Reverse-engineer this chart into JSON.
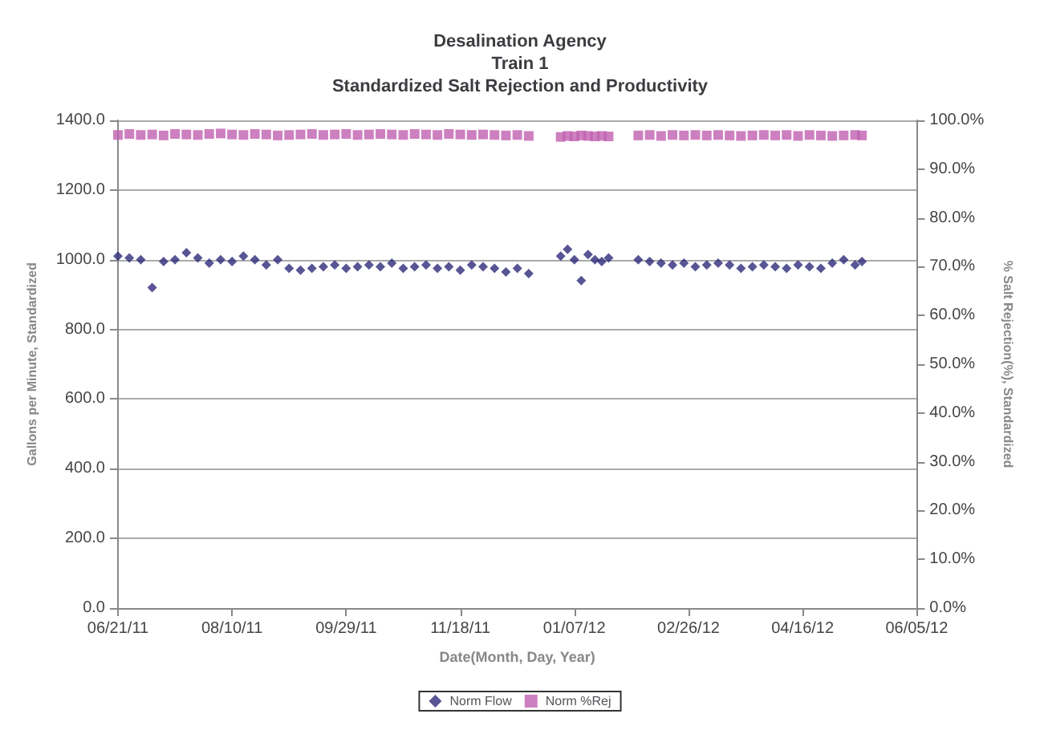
{
  "chart_data": {
    "type": "scatter",
    "title": "Desalination Agency\nTrain 1\nStandardized Salt Rejection and Productivity",
    "xlabel": "Date(Month, Day, Year)",
    "ylabel": "Gallons per Minute, Standardized",
    "y2label": "% Salt Rejection(%), Standardized",
    "x": [
      "2011-06-21",
      "2011-06-26",
      "2011-07-01",
      "2011-07-06",
      "2011-07-11",
      "2011-07-16",
      "2011-07-21",
      "2011-07-26",
      "2011-07-31",
      "2011-08-05",
      "2011-08-10",
      "2011-08-15",
      "2011-08-20",
      "2011-08-25",
      "2011-08-30",
      "2011-09-04",
      "2011-09-09",
      "2011-09-14",
      "2011-09-19",
      "2011-09-24",
      "2011-09-29",
      "2011-10-04",
      "2011-10-09",
      "2011-10-14",
      "2011-10-19",
      "2011-10-24",
      "2011-10-29",
      "2011-11-03",
      "2011-11-08",
      "2011-11-13",
      "2011-11-18",
      "2011-11-23",
      "2011-11-28",
      "2011-12-03",
      "2011-12-08",
      "2011-12-13",
      "2011-12-18",
      "2012-01-01",
      "2012-01-04",
      "2012-01-07",
      "2012-01-10",
      "2012-01-13",
      "2012-01-16",
      "2012-01-19",
      "2012-01-22",
      "2012-02-04",
      "2012-02-09",
      "2012-02-14",
      "2012-02-19",
      "2012-02-24",
      "2012-02-29",
      "2012-03-05",
      "2012-03-10",
      "2012-03-15",
      "2012-03-20",
      "2012-03-25",
      "2012-03-30",
      "2012-04-04",
      "2012-04-09",
      "2012-04-14",
      "2012-04-19",
      "2012-04-24",
      "2012-04-29",
      "2012-05-04",
      "2012-05-09",
      "2012-05-12"
    ],
    "series": [
      {
        "name": "Norm Flow",
        "color": "#2e2a7a",
        "marker": "diamond",
        "values": [
          1010,
          1005,
          1000,
          920,
          995,
          1000,
          1020,
          1005,
          990,
          1000,
          995,
          1010,
          1000,
          985,
          1000,
          975,
          970,
          975,
          980,
          985,
          975,
          980,
          985,
          980,
          990,
          975,
          980,
          985,
          975,
          980,
          970,
          985,
          980,
          975,
          965,
          975,
          960,
          1010,
          1030,
          1000,
          940,
          1015,
          1000,
          995,
          1005,
          1000,
          995,
          990,
          985,
          990,
          980,
          985,
          990,
          985,
          975,
          980,
          985,
          980,
          975,
          985,
          980,
          975,
          990,
          1000,
          985,
          995
        ]
      },
      {
        "name": "Norm %Rej",
        "color": "#c060b0",
        "marker": "square",
        "axis": "y2",
        "values": [
          97.0,
          97.2,
          97.0,
          97.1,
          96.9,
          97.2,
          97.1,
          97.0,
          97.2,
          97.3,
          97.1,
          97.0,
          97.2,
          97.1,
          96.9,
          97.0,
          97.1,
          97.2,
          97.0,
          97.1,
          97.2,
          97.0,
          97.1,
          97.2,
          97.1,
          97.0,
          97.2,
          97.1,
          97.0,
          97.2,
          97.1,
          97.0,
          97.1,
          97.0,
          96.9,
          97.0,
          96.8,
          96.6,
          96.8,
          96.7,
          96.9,
          96.8,
          96.7,
          96.8,
          96.7,
          96.9,
          97.0,
          96.8,
          97.0,
          96.9,
          97.0,
          96.9,
          97.0,
          96.9,
          96.8,
          96.9,
          97.0,
          96.9,
          97.0,
          96.8,
          97.0,
          96.9,
          96.8,
          96.9,
          97.0,
          96.9
        ]
      }
    ],
    "xlim": [
      "2011-06-21",
      "2012-06-05"
    ],
    "xticks": [
      {
        "value": "2011-06-21",
        "label": "06/21/11"
      },
      {
        "value": "2011-08-10",
        "label": "08/10/11"
      },
      {
        "value": "2011-09-29",
        "label": "09/29/11"
      },
      {
        "value": "2011-11-18",
        "label": "11/18/11"
      },
      {
        "value": "2012-01-07",
        "label": "01/07/12"
      },
      {
        "value": "2012-02-26",
        "label": "02/26/12"
      },
      {
        "value": "2012-04-16",
        "label": "04/16/12"
      },
      {
        "value": "2012-06-05",
        "label": "06/05/12"
      }
    ],
    "ylim": [
      0,
      1400
    ],
    "yticks": [
      {
        "value": 0,
        "label": "0.0"
      },
      {
        "value": 200,
        "label": "200.0"
      },
      {
        "value": 400,
        "label": "400.0"
      },
      {
        "value": 600,
        "label": "600.0"
      },
      {
        "value": 800,
        "label": "800.0"
      },
      {
        "value": 1000,
        "label": "1000.0"
      },
      {
        "value": 1200,
        "label": "1200.0"
      },
      {
        "value": 1400,
        "label": "1400.0"
      }
    ],
    "y2lim": [
      0,
      100
    ],
    "y2ticks": [
      {
        "value": 0,
        "label": "0.0%"
      },
      {
        "value": 10,
        "label": "10.0%"
      },
      {
        "value": 20,
        "label": "20.0%"
      },
      {
        "value": 30,
        "label": "30.0%"
      },
      {
        "value": 40,
        "label": "40.0%"
      },
      {
        "value": 50,
        "label": "50.0%"
      },
      {
        "value": 60,
        "label": "60.0%"
      },
      {
        "value": 70,
        "label": "70.0%"
      },
      {
        "value": 80,
        "label": "80.0%"
      },
      {
        "value": 90,
        "label": "90.0%"
      },
      {
        "value": 100,
        "label": "100.0%"
      }
    ],
    "grid": "y",
    "legend": "bottom"
  }
}
